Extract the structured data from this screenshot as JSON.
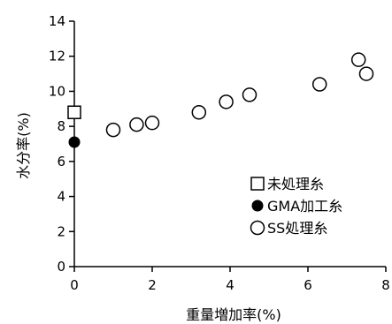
{
  "chart_data": {
    "type": "scatter",
    "title": "",
    "xlabel": "重量増加率(%)",
    "ylabel": "水分率(%)",
    "xlim": [
      0,
      8
    ],
    "ylim": [
      0,
      14
    ],
    "x_ticks": [
      "0",
      "2",
      "4",
      "6",
      "8"
    ],
    "y_ticks": [
      "0",
      "2",
      "4",
      "6",
      "8",
      "10",
      "12",
      "14"
    ],
    "grid": false,
    "legend_position": "bottom-right",
    "series": [
      {
        "name": "未処理糸",
        "marker": "square-open",
        "points": [
          {
            "x": 0,
            "y": 8.8
          }
        ]
      },
      {
        "name": "GMA加工糸",
        "marker": "circle-filled",
        "points": [
          {
            "x": 0,
            "y": 7.1
          }
        ]
      },
      {
        "name": "SS処理糸",
        "marker": "circle-open",
        "points": [
          {
            "x": 1.0,
            "y": 7.8
          },
          {
            "x": 1.6,
            "y": 8.1
          },
          {
            "x": 2.0,
            "y": 8.2
          },
          {
            "x": 3.2,
            "y": 8.8
          },
          {
            "x": 3.9,
            "y": 9.4
          },
          {
            "x": 4.5,
            "y": 9.8
          },
          {
            "x": 6.3,
            "y": 10.4
          },
          {
            "x": 7.3,
            "y": 11.8
          },
          {
            "x": 7.5,
            "y": 11.0
          }
        ]
      }
    ]
  }
}
